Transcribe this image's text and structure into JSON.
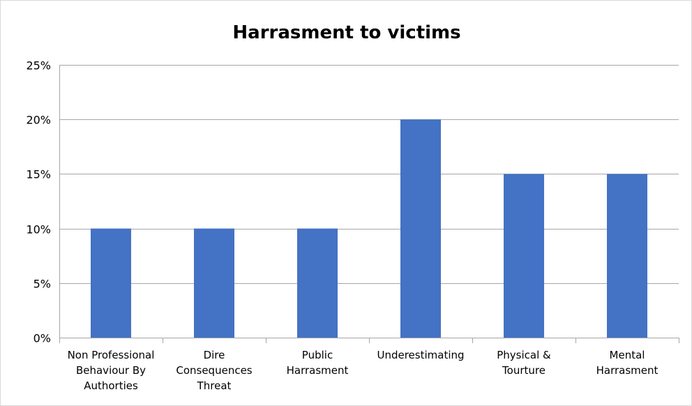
{
  "chart_data": {
    "type": "bar",
    "title": "Harrasment to victims",
    "xlabel": "",
    "ylabel": "",
    "categories": [
      "Non Professional Behaviour By Authorties",
      "Dire Consequences Threat",
      "Public Harrasment",
      "Underestimating",
      "Physical & Tourture",
      "Mental Harrasment"
    ],
    "category_lines": [
      [
        "Non Professional",
        "Behaviour By",
        "Authorties"
      ],
      [
        "Dire",
        "Consequences",
        "Threat"
      ],
      [
        "Public",
        "Harrasment"
      ],
      [
        "Underestimating"
      ],
      [
        "Physical &",
        "Tourture"
      ],
      [
        "Mental",
        "Harrasment"
      ]
    ],
    "values": [
      10,
      10,
      10,
      20,
      15,
      15
    ],
    "ylim": [
      0,
      25
    ],
    "yticks": [
      0,
      5,
      10,
      15,
      20,
      25
    ],
    "ytick_labels": [
      "0%",
      "5%",
      "10%",
      "15%",
      "20%",
      "25%"
    ],
    "grid": true,
    "legend": "none",
    "bar_color": "#4472c4",
    "grid_color": "#a6a6a6"
  }
}
